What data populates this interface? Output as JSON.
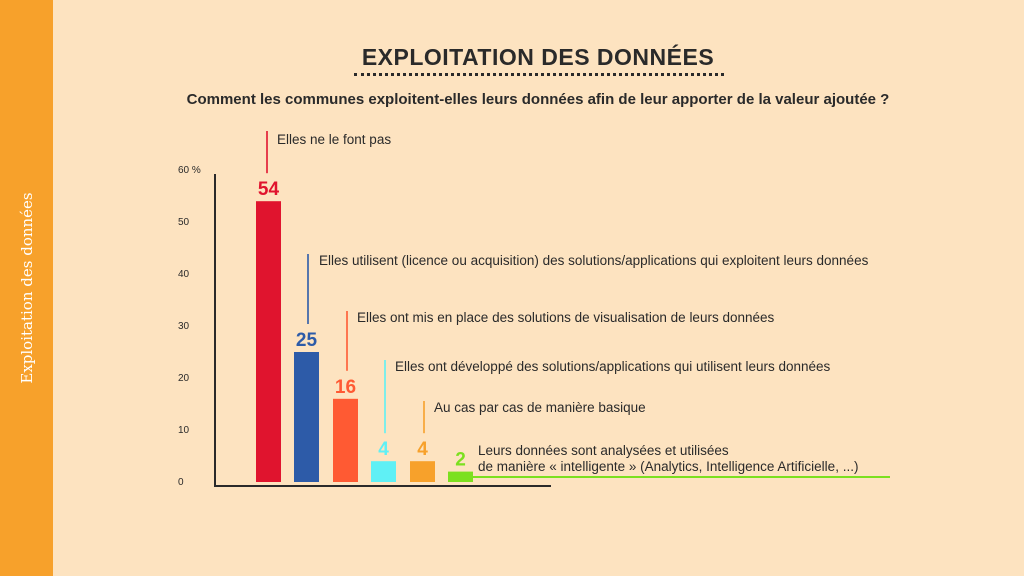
{
  "sidebar": {
    "label": "Exploitation des données",
    "color": "#F7A12B"
  },
  "header": {
    "title": "EXPLOITATION DES DONNÉES",
    "subtitle": "Comment les communes exploitent-elles leurs données afin de leur apporter de la valeur ajoutée ?"
  },
  "colors": {
    "background": "#FDE3C0",
    "text": "#2a2a2a"
  },
  "chart_data": {
    "type": "bar",
    "title": "EXPLOITATION DES DONNÉES",
    "ylim": [
      0,
      60
    ],
    "yticks": [
      "0",
      "10",
      "20",
      "30",
      "40",
      "50",
      "60 %"
    ],
    "grid": false,
    "categories": [
      "Elles ne le font pas",
      "Elles utilisent (licence ou acquisition) des solutions/applications qui exploitent leurs données",
      "Elles ont mis en place des solutions de visualisation de leurs données",
      "Elles ont développé des solutions/applications qui utilisent leurs données",
      "Au cas par cas de manière basique",
      "Leurs données sont analysées et utilisées\nde manière « intelligente » (Analytics, Intelligence Artificielle, ...)"
    ],
    "values": [
      54,
      25,
      16,
      4,
      4,
      2
    ],
    "value_labels": [
      "54",
      "25",
      "16",
      "4",
      "4",
      "2"
    ],
    "colors": [
      "#E0142E",
      "#2D5BA8",
      "#FF5A33",
      "#5FF0F5",
      "#F7A12B",
      "#7CE01F"
    ]
  }
}
